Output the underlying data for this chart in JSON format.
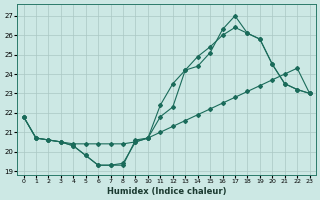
{
  "xlabel": "Humidex (Indice chaleur)",
  "bg_color": "#cce8e4",
  "grid_color": "#aac8c4",
  "line_color": "#1a6b5a",
  "xlim": [
    -0.5,
    23.5
  ],
  "ylim": [
    18.8,
    27.6
  ],
  "xticks": [
    0,
    1,
    2,
    3,
    4,
    5,
    6,
    7,
    8,
    9,
    10,
    11,
    12,
    13,
    14,
    15,
    16,
    17,
    18,
    19,
    20,
    21,
    22,
    23
  ],
  "yticks": [
    19,
    20,
    21,
    22,
    23,
    24,
    25,
    26,
    27
  ],
  "curve_zigzag_x": [
    0,
    1,
    2,
    3,
    4,
    5,
    6,
    7,
    8,
    9,
    10,
    11,
    12,
    13,
    14,
    15,
    16,
    17,
    18,
    19,
    20,
    21,
    22,
    23
  ],
  "curve_zigzag_y": [
    21.8,
    20.7,
    20.6,
    20.5,
    20.3,
    19.8,
    19.3,
    19.3,
    19.3,
    20.6,
    20.7,
    21.8,
    22.3,
    24.2,
    24.4,
    25.1,
    26.3,
    27.0,
    26.1,
    25.8,
    24.5,
    23.5,
    23.2,
    23.0
  ],
  "curve_straight_x": [
    0,
    1,
    2,
    3,
    4,
    5,
    6,
    7,
    8,
    9,
    10,
    11,
    12,
    13,
    14,
    15,
    16,
    17,
    18,
    19,
    20,
    21,
    22,
    23
  ],
  "curve_straight_y": [
    21.8,
    20.7,
    20.6,
    20.5,
    20.4,
    20.4,
    20.4,
    20.4,
    20.4,
    20.5,
    20.7,
    21.0,
    21.3,
    21.6,
    21.9,
    22.2,
    22.5,
    22.8,
    23.1,
    23.4,
    23.7,
    24.0,
    24.3,
    23.0
  ],
  "curve_triangle_x": [
    0,
    1,
    2,
    3,
    4,
    5,
    6,
    7,
    8,
    9,
    10,
    11,
    12,
    13,
    14,
    15,
    16,
    17,
    18,
    19,
    20,
    21,
    22,
    23
  ],
  "curve_triangle_y": [
    21.8,
    20.7,
    20.6,
    20.5,
    20.3,
    19.8,
    19.3,
    19.3,
    19.4,
    20.5,
    20.7,
    22.4,
    23.5,
    24.2,
    24.9,
    25.4,
    26.0,
    26.4,
    26.1,
    25.8,
    24.5,
    23.5,
    23.2,
    23.0
  ]
}
